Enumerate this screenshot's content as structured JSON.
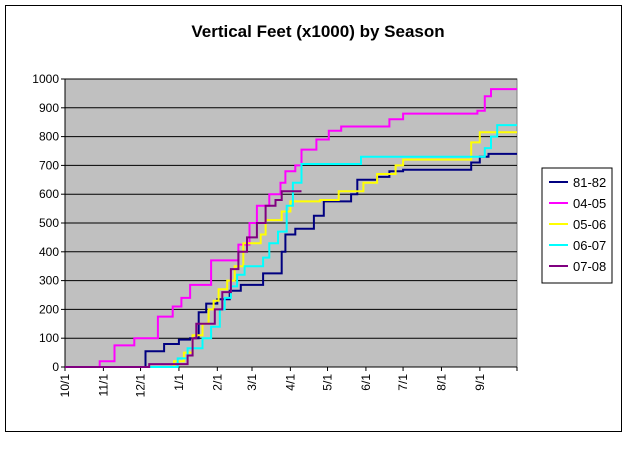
{
  "chart_data": {
    "type": "line",
    "title": "Vertical Feet (x1000) by Season",
    "xlabel": "",
    "ylabel": "",
    "ylim": [
      0,
      1000
    ],
    "yticks": [
      0,
      100,
      200,
      300,
      400,
      500,
      600,
      700,
      800,
      900,
      1000
    ],
    "xtick_labels": [
      "10/1",
      "11/1",
      "12/1",
      "1/1",
      "2/1",
      "3/1",
      "4/1",
      "5/1",
      "6/1",
      "7/1",
      "8/1",
      "9/1"
    ],
    "xlim": [
      "10/1",
      "10/1"
    ],
    "grid": true,
    "plot_background": "#C0C0C0",
    "legend_position": "right",
    "series": [
      {
        "name": "81-82",
        "color": "#000080",
        "points": [
          [
            "10/1",
            0
          ],
          [
            "12/5",
            0
          ],
          [
            "12/5",
            55
          ],
          [
            "12/20",
            55
          ],
          [
            "12/20",
            80
          ],
          [
            "1/1",
            80
          ],
          [
            "1/1",
            95
          ],
          [
            "1/10",
            95
          ],
          [
            "1/10",
            100
          ],
          [
            "1/17",
            100
          ],
          [
            "1/17",
            190
          ],
          [
            "1/23",
            190
          ],
          [
            "1/23",
            220
          ],
          [
            "2/1",
            220
          ],
          [
            "2/1",
            235
          ],
          [
            "2/11",
            235
          ],
          [
            "2/11",
            265
          ],
          [
            "2/20",
            265
          ],
          [
            "2/20",
            285
          ],
          [
            "3/10",
            285
          ],
          [
            "3/10",
            325
          ],
          [
            "3/25",
            325
          ],
          [
            "3/25",
            400
          ],
          [
            "3/28",
            400
          ],
          [
            "3/28",
            460
          ],
          [
            "4/5",
            460
          ],
          [
            "4/5",
            480
          ],
          [
            "4/20",
            480
          ],
          [
            "4/20",
            525
          ],
          [
            "4/28",
            525
          ],
          [
            "4/28",
            575
          ],
          [
            "5/20",
            575
          ],
          [
            "5/20",
            600
          ],
          [
            "5/25",
            600
          ],
          [
            "5/25",
            650
          ],
          [
            "6/10",
            650
          ],
          [
            "6/10",
            660
          ],
          [
            "6/20",
            660
          ],
          [
            "6/20",
            680
          ],
          [
            "7/1",
            680
          ],
          [
            "7/1",
            685
          ],
          [
            "8/25",
            685
          ],
          [
            "8/25",
            710
          ],
          [
            "9/1",
            710
          ],
          [
            "9/1",
            730
          ],
          [
            "9/8",
            730
          ],
          [
            "9/8",
            740
          ],
          [
            "10/1",
            740
          ]
        ]
      },
      {
        "name": "04-05",
        "color": "#FF00FF",
        "points": [
          [
            "10/1",
            0
          ],
          [
            "10/29",
            0
          ],
          [
            "10/29",
            20
          ],
          [
            "11/10",
            20
          ],
          [
            "11/10",
            75
          ],
          [
            "11/26",
            75
          ],
          [
            "11/26",
            100
          ],
          [
            "12/15",
            100
          ],
          [
            "12/15",
            175
          ],
          [
            "12/27",
            175
          ],
          [
            "12/27",
            210
          ],
          [
            "1/3",
            210
          ],
          [
            "1/3",
            240
          ],
          [
            "1/10",
            240
          ],
          [
            "1/10",
            285
          ],
          [
            "1/27",
            285
          ],
          [
            "1/27",
            370
          ],
          [
            "2/18",
            370
          ],
          [
            "2/18",
            425
          ],
          [
            "2/27",
            425
          ],
          [
            "2/27",
            500
          ],
          [
            "3/5",
            500
          ],
          [
            "3/5",
            560
          ],
          [
            "3/15",
            560
          ],
          [
            "3/15",
            600
          ],
          [
            "3/24",
            600
          ],
          [
            "3/24",
            640
          ],
          [
            "3/28",
            640
          ],
          [
            "3/28",
            680
          ],
          [
            "4/5",
            680
          ],
          [
            "4/5",
            700
          ],
          [
            "4/10",
            700
          ],
          [
            "4/10",
            755
          ],
          [
            "4/22",
            755
          ],
          [
            "4/22",
            790
          ],
          [
            "5/2",
            790
          ],
          [
            "5/2",
            820
          ],
          [
            "5/12",
            820
          ],
          [
            "5/12",
            835
          ],
          [
            "6/20",
            835
          ],
          [
            "6/20",
            860
          ],
          [
            "7/1",
            860
          ],
          [
            "7/1",
            880
          ],
          [
            "8/30",
            880
          ],
          [
            "8/30",
            890
          ],
          [
            "9/5",
            890
          ],
          [
            "9/5",
            940
          ],
          [
            "9/10",
            940
          ],
          [
            "9/10",
            965
          ],
          [
            "10/1",
            965
          ]
        ]
      },
      {
        "name": "05-06",
        "color": "#FFFF00",
        "points": [
          [
            "10/1",
            0
          ],
          [
            "12/28",
            0
          ],
          [
            "12/28",
            20
          ],
          [
            "1/5",
            20
          ],
          [
            "1/5",
            50
          ],
          [
            "1/12",
            50
          ],
          [
            "1/12",
            110
          ],
          [
            "1/20",
            110
          ],
          [
            "1/20",
            150
          ],
          [
            "1/25",
            150
          ],
          [
            "1/25",
            200
          ],
          [
            "1/29",
            200
          ],
          [
            "1/29",
            230
          ],
          [
            "2/2",
            230
          ],
          [
            "2/2",
            270
          ],
          [
            "2/9",
            270
          ],
          [
            "2/9",
            300
          ],
          [
            "2/15",
            300
          ],
          [
            "2/15",
            350
          ],
          [
            "2/22",
            350
          ],
          [
            "2/22",
            430
          ],
          [
            "3/8",
            430
          ],
          [
            "3/8",
            460
          ],
          [
            "3/12",
            460
          ],
          [
            "3/12",
            510
          ],
          [
            "3/25",
            510
          ],
          [
            "3/25",
            540
          ],
          [
            "4/1",
            540
          ],
          [
            "4/1",
            575
          ],
          [
            "4/25",
            575
          ],
          [
            "4/25",
            580
          ],
          [
            "5/10",
            580
          ],
          [
            "5/10",
            610
          ],
          [
            "5/30",
            610
          ],
          [
            "5/30",
            640
          ],
          [
            "6/10",
            640
          ],
          [
            "6/10",
            670
          ],
          [
            "6/25",
            670
          ],
          [
            "6/25",
            700
          ],
          [
            "7/1",
            700
          ],
          [
            "7/1",
            720
          ],
          [
            "8/25",
            720
          ],
          [
            "8/25",
            780
          ],
          [
            "9/1",
            780
          ],
          [
            "9/1",
            815
          ],
          [
            "10/1",
            815
          ]
        ]
      },
      {
        "name": "06-07",
        "color": "#00FFFF",
        "points": [
          [
            "10/1",
            0
          ],
          [
            "12/31",
            0
          ],
          [
            "12/31",
            30
          ],
          [
            "1/8",
            30
          ],
          [
            "1/8",
            65
          ],
          [
            "1/20",
            65
          ],
          [
            "1/20",
            100
          ],
          [
            "1/27",
            100
          ],
          [
            "1/27",
            140
          ],
          [
            "2/3",
            140
          ],
          [
            "2/3",
            200
          ],
          [
            "2/7",
            200
          ],
          [
            "2/7",
            240
          ],
          [
            "2/12",
            240
          ],
          [
            "2/12",
            280
          ],
          [
            "2/17",
            280
          ],
          [
            "2/17",
            320
          ],
          [
            "2/23",
            320
          ],
          [
            "2/23",
            350
          ],
          [
            "3/10",
            350
          ],
          [
            "3/10",
            380
          ],
          [
            "3/15",
            380
          ],
          [
            "3/15",
            430
          ],
          [
            "3/22",
            430
          ],
          [
            "3/22",
            470
          ],
          [
            "3/29",
            470
          ],
          [
            "3/29",
            560
          ],
          [
            "4/3",
            560
          ],
          [
            "4/3",
            640
          ],
          [
            "4/10",
            640
          ],
          [
            "4/10",
            705
          ],
          [
            "5/28",
            705
          ],
          [
            "5/28",
            730
          ],
          [
            "9/5",
            730
          ],
          [
            "9/5",
            760
          ],
          [
            "9/10",
            760
          ],
          [
            "9/10",
            800
          ],
          [
            "9/15",
            800
          ],
          [
            "9/15",
            840
          ],
          [
            "10/1",
            840
          ]
        ]
      },
      {
        "name": "07-08",
        "color": "#800080",
        "points": [
          [
            "10/1",
            0
          ],
          [
            "12/8",
            0
          ],
          [
            "12/8",
            10
          ],
          [
            "1/8",
            10
          ],
          [
            "1/8",
            40
          ],
          [
            "1/12",
            40
          ],
          [
            "1/12",
            100
          ],
          [
            "1/15",
            100
          ],
          [
            "1/15",
            150
          ],
          [
            "1/30",
            150
          ],
          [
            "1/30",
            200
          ],
          [
            "2/5",
            200
          ],
          [
            "2/5",
            260
          ],
          [
            "2/12",
            260
          ],
          [
            "2/12",
            340
          ],
          [
            "2/18",
            340
          ],
          [
            "2/18",
            400
          ],
          [
            "2/25",
            400
          ],
          [
            "2/25",
            450
          ],
          [
            "3/5",
            450
          ],
          [
            "3/5",
            500
          ],
          [
            "3/12",
            500
          ],
          [
            "3/12",
            560
          ],
          [
            "3/20",
            560
          ],
          [
            "3/20",
            580
          ],
          [
            "3/25",
            580
          ],
          [
            "3/25",
            610
          ],
          [
            "4/10",
            610
          ]
        ]
      }
    ]
  }
}
